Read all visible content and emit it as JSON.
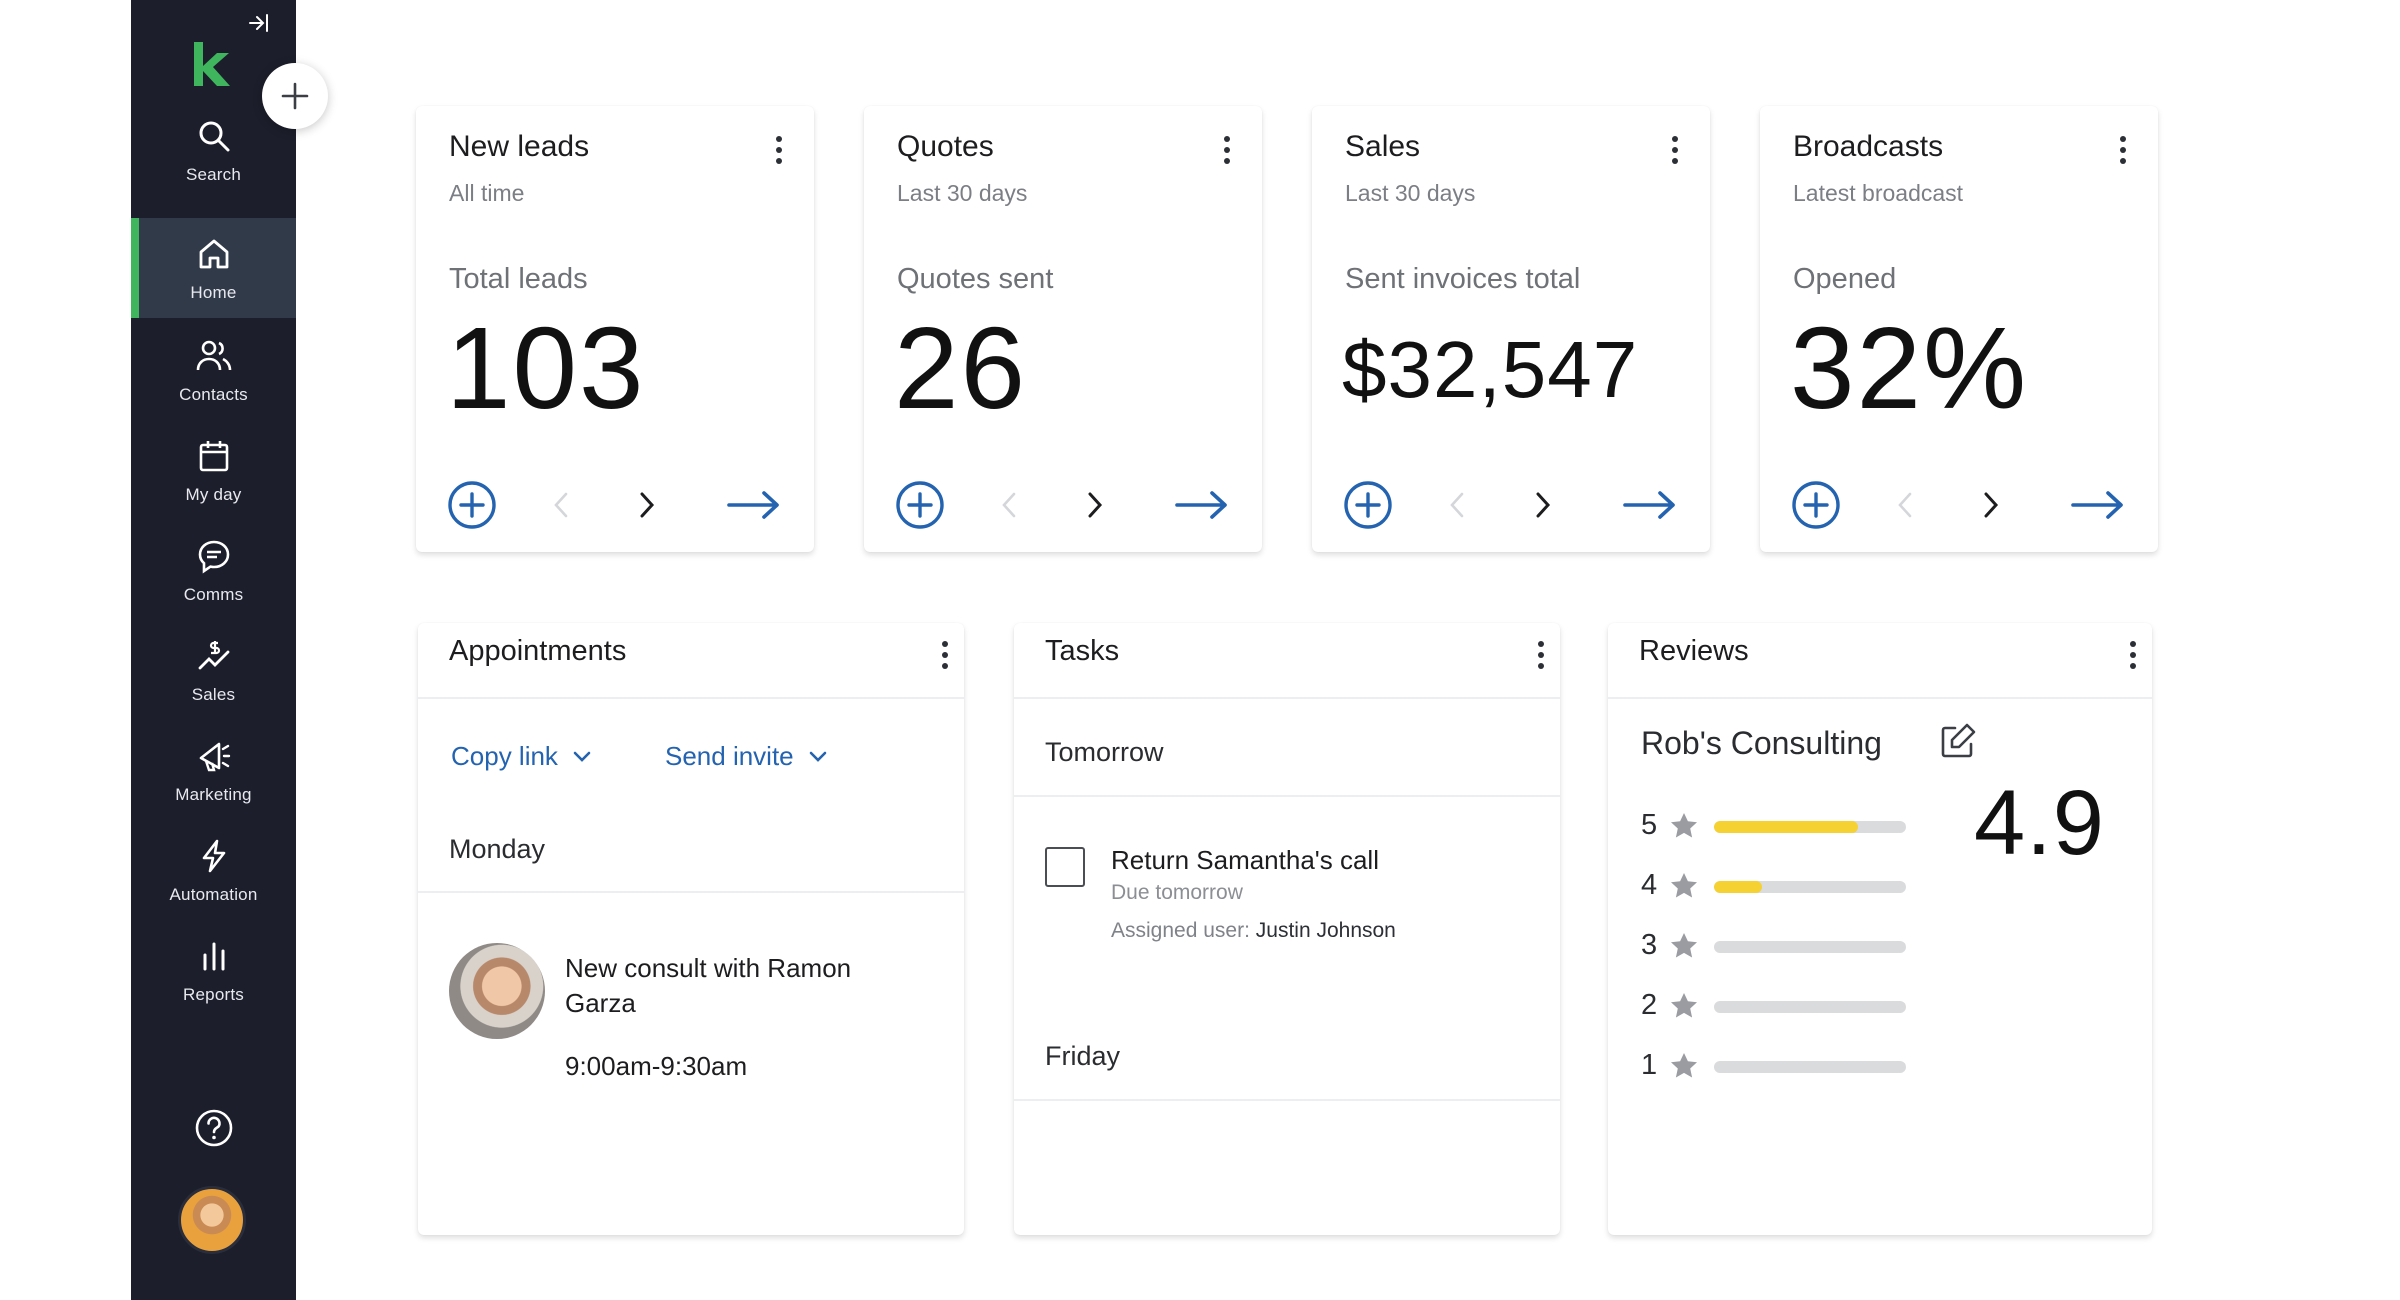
{
  "sidebar": {
    "items": [
      {
        "id": "search",
        "label": "Search",
        "icon": "search-icon"
      },
      {
        "id": "home",
        "label": "Home",
        "icon": "home-icon",
        "active": true
      },
      {
        "id": "contacts",
        "label": "Contacts",
        "icon": "contacts-icon"
      },
      {
        "id": "my-day",
        "label": "My day",
        "icon": "calendar-icon"
      },
      {
        "id": "comms",
        "label": "Comms",
        "icon": "chat-icon"
      },
      {
        "id": "sales",
        "label": "Sales",
        "icon": "sales-icon"
      },
      {
        "id": "marketing",
        "label": "Marketing",
        "icon": "megaphone-icon"
      },
      {
        "id": "automation",
        "label": "Automation",
        "icon": "lightning-icon"
      },
      {
        "id": "reports",
        "label": "Reports",
        "icon": "bar-chart-icon"
      }
    ],
    "accent": "#3fb55d",
    "background": "#1c1e2b"
  },
  "kpis": [
    {
      "title": "New leads",
      "subtitle": "All time",
      "label": "Total leads",
      "value": "103"
    },
    {
      "title": "Quotes",
      "subtitle": "Last 30 days",
      "label": "Quotes sent",
      "value": "26"
    },
    {
      "title": "Sales",
      "subtitle": "Last 30 days",
      "label": "Sent invoices total",
      "value": "$32,547"
    },
    {
      "title": "Broadcasts",
      "subtitle": "Latest broadcast",
      "label": "Opened",
      "value": "32%"
    }
  ],
  "appointments": {
    "title": "Appointments",
    "copy_link": "Copy link",
    "send_invite": "Send invite",
    "day": "Monday",
    "item": {
      "title": "New consult with Ramon Garza",
      "time": "9:00am-9:30am"
    }
  },
  "tasks": {
    "title": "Tasks",
    "tomorrow": "Tomorrow",
    "item": {
      "title": "Return Samantha's call",
      "due": "Due tomorrow",
      "assigned_label": "Assigned user:",
      "assigned_user": "Justin Johnson"
    },
    "friday": "Friday"
  },
  "reviews": {
    "title": "Reviews",
    "business": "Rob's Consulting",
    "score": "4.9",
    "ratings": [
      {
        "stars": "5",
        "fraction": 0.75
      },
      {
        "stars": "4",
        "fraction": 0.25
      },
      {
        "stars": "3",
        "fraction": 0
      },
      {
        "stars": "2",
        "fraction": 0
      },
      {
        "stars": "1",
        "fraction": 0
      }
    ]
  },
  "colors": {
    "link_blue": "#2463b0",
    "rating_yellow": "#f5d131",
    "star_gray": "#9a9ca1"
  }
}
